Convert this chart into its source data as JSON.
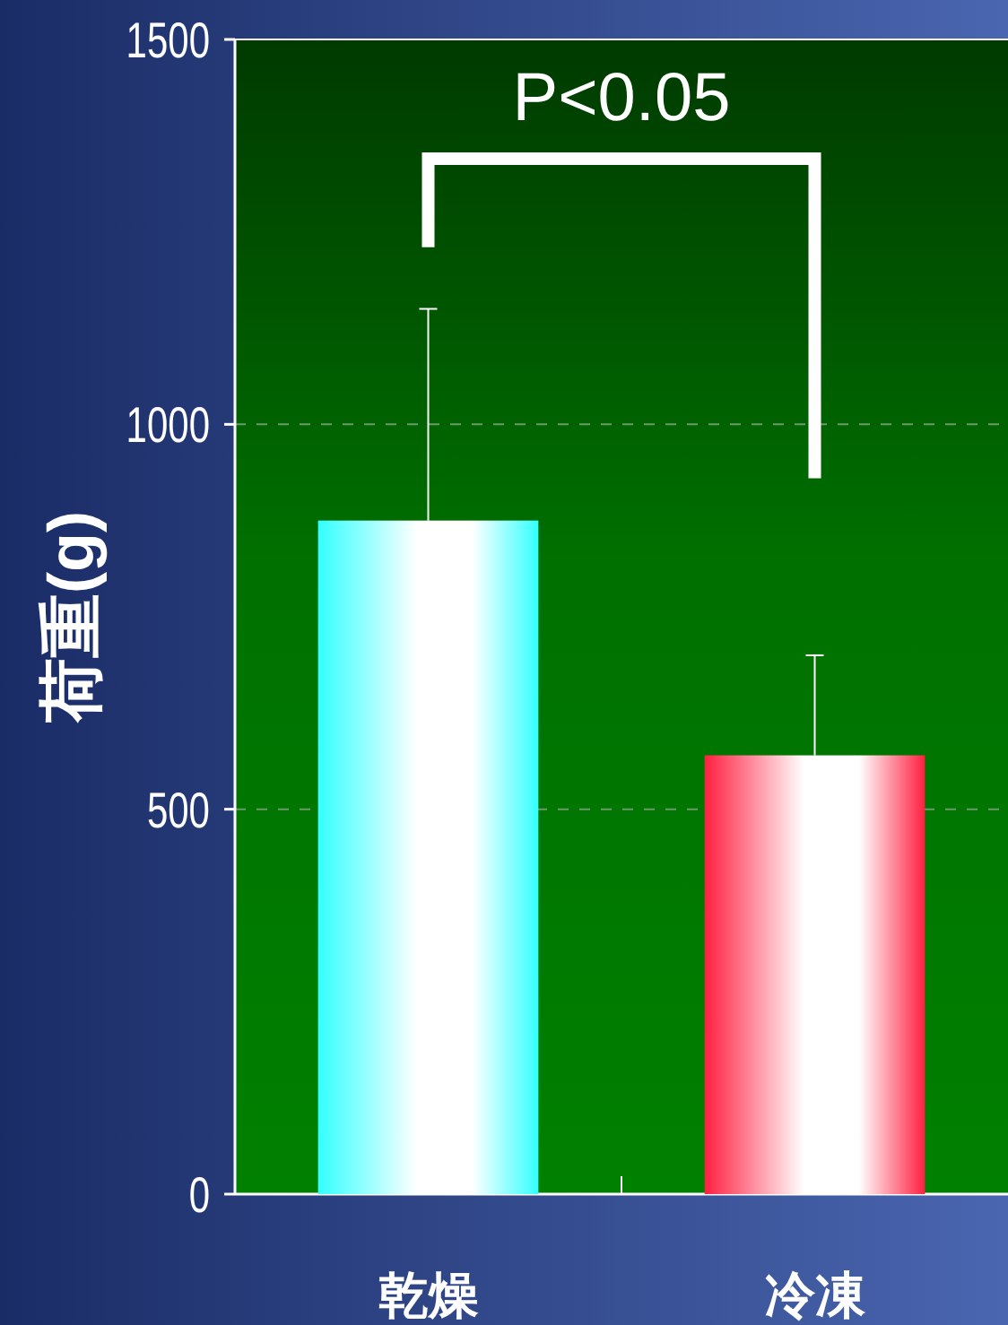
{
  "chart_data": {
    "type": "bar",
    "ylabel": "荷重(g)",
    "categories": [
      "乾燥",
      "冷凍"
    ],
    "values": [
      875,
      570
    ],
    "colors": [
      "#33ffff",
      "#ff2040"
    ],
    "errors": [
      [
        875,
        1150
      ],
      [
        570,
        700
      ]
    ],
    "ylim": [
      0,
      1500
    ],
    "yticks": [
      0,
      500,
      1000,
      1500
    ],
    "grid": "y",
    "annotations": [
      "P<0.05"
    ]
  }
}
